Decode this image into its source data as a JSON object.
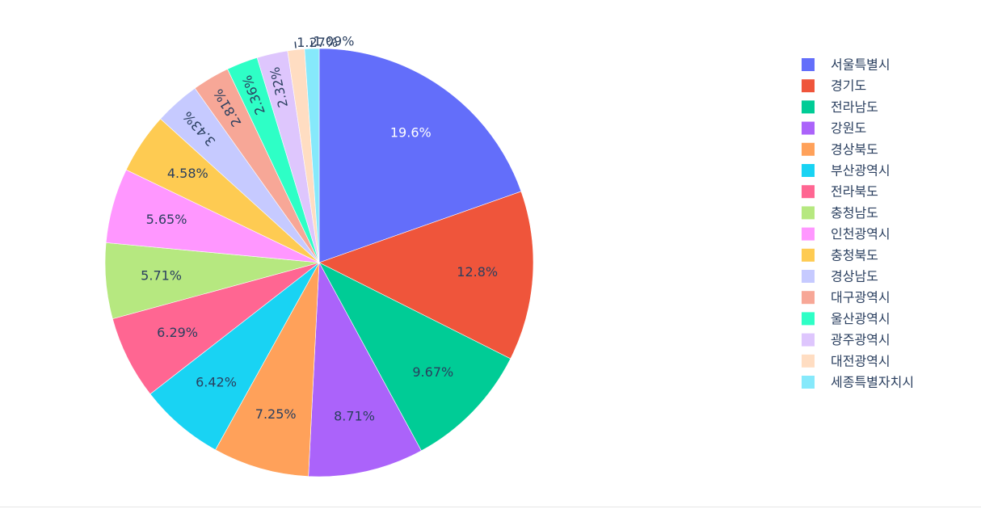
{
  "chart_data": {
    "type": "pie",
    "title": "",
    "legend_position": "right",
    "categories": [
      "서울특별시",
      "경기도",
      "전라남도",
      "강원도",
      "경상북도",
      "부산광역시",
      "전라북도",
      "충청남도",
      "인천광역시",
      "충청북도",
      "경상남도",
      "대구광역시",
      "울산광역시",
      "광주광역시",
      "대전광역시",
      "세종특별자치시"
    ],
    "values": [
      19.6,
      12.8,
      9.67,
      8.71,
      7.25,
      6.42,
      6.29,
      5.71,
      5.65,
      4.58,
      3.43,
      2.81,
      2.36,
      2.32,
      1.27,
      1.09
    ],
    "labels": [
      "19.6%",
      "12.8%",
      "9.67%",
      "8.71%",
      "7.25%",
      "6.42%",
      "6.29%",
      "5.71%",
      "5.65%",
      "4.58%",
      "3.43%",
      "2.81%",
      "2.36%",
      "2.32%",
      "1.27%",
      "1.09%"
    ],
    "colors": [
      "#636efa",
      "#ef553b",
      "#00cc96",
      "#ab63fa",
      "#ffa15a",
      "#19d3f3",
      "#ff6692",
      "#b6e880",
      "#ff97ff",
      "#fecb52",
      "#c6caff",
      "#f7a797",
      "#2effc6",
      "#dec6fd",
      "#ffddc2",
      "#86e9fb"
    ]
  }
}
